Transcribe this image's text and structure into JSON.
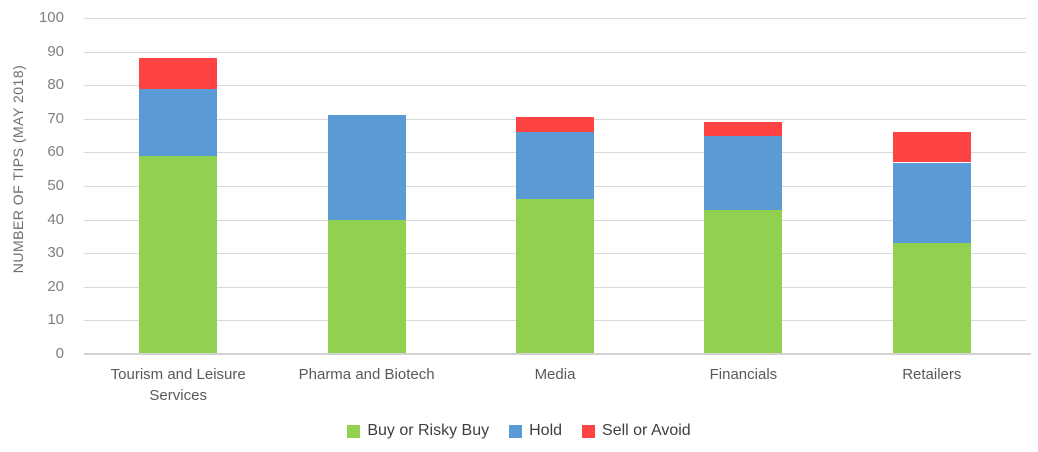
{
  "chart_data": {
    "type": "bar",
    "stacked": true,
    "title": "",
    "xlabel": "",
    "ylabel": "NUMBER OF TIPS (MAY 2018)",
    "ylim": [
      0,
      100
    ],
    "yticks": [
      0,
      10,
      20,
      30,
      40,
      50,
      60,
      70,
      80,
      90,
      100
    ],
    "grid": true,
    "legend_position": "bottom",
    "categories": [
      "Tourism and Leisure Services",
      "Pharma and Biotech",
      "Media",
      "Financials",
      "Retailers"
    ],
    "series": [
      {
        "name": "Buy or Risky Buy",
        "color": "#92d050",
        "values": [
          59,
          40,
          46,
          43,
          33
        ]
      },
      {
        "name": "Hold",
        "color": "#5b9bd5",
        "values": [
          20,
          31,
          20,
          22,
          24
        ]
      },
      {
        "name": "Sell or Avoid",
        "color": "#ff4343",
        "values": [
          9,
          0,
          4.5,
          4,
          9
        ]
      }
    ],
    "totals": [
      88,
      71,
      70.5,
      69,
      66
    ]
  },
  "colors": {
    "gridline": "#d9d9d9",
    "axis_line": "#d2d2d2",
    "tick_label": "#808080",
    "category_label": "#595959",
    "legend_label": "#3f3f3f",
    "axis_title": "#6e6e6e"
  }
}
